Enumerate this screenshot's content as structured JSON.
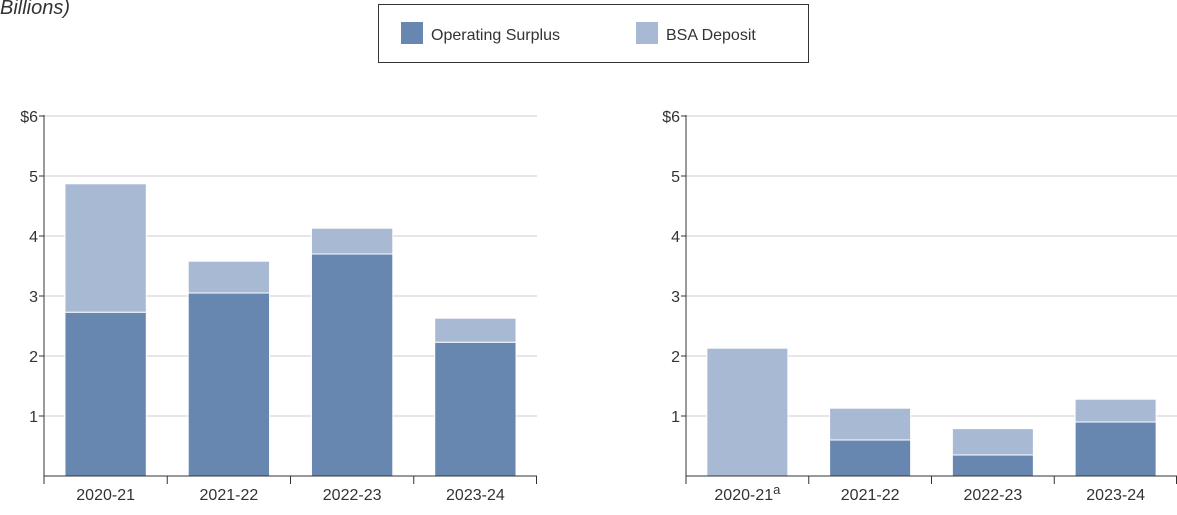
{
  "chart_data": [
    {
      "type": "stacked_bar",
      "title": "Billions)",
      "categories": [
        "2020-21",
        "2021-22",
        "2022-23",
        "2023-24"
      ],
      "series": [
        {
          "name": "Operating Surplus",
          "color": "#6787b1",
          "values": [
            2.73,
            3.05,
            3.7,
            2.23
          ]
        },
        {
          "name": "BSA Deposit",
          "color": "#a8b9d3",
          "values": [
            2.14,
            0.53,
            0.43,
            0.4
          ]
        }
      ],
      "ylim": [
        0,
        6
      ],
      "yticks": [
        1,
        2,
        3,
        4,
        5,
        {
          "value": 6,
          "label": "$6"
        }
      ],
      "grid": true
    },
    {
      "type": "stacked_bar",
      "categories": [
        "2020-21",
        "2021-22",
        "2022-23",
        "2023-24"
      ],
      "category_marks": [
        "a",
        null,
        null,
        null
      ],
      "series": [
        {
          "name": "Operating Surplus",
          "color": "#6787b1",
          "values": [
            0,
            0.6,
            0.35,
            0.9
          ]
        },
        {
          "name": "BSA Deposit",
          "color": "#a8b9d3",
          "values": [
            2.13,
            0.53,
            0.44,
            0.38
          ]
        }
      ],
      "ylim": [
        0,
        6
      ],
      "yticks": [
        1,
        2,
        3,
        4,
        5,
        {
          "value": 6,
          "label": "$6"
        }
      ],
      "grid": true
    }
  ]
}
